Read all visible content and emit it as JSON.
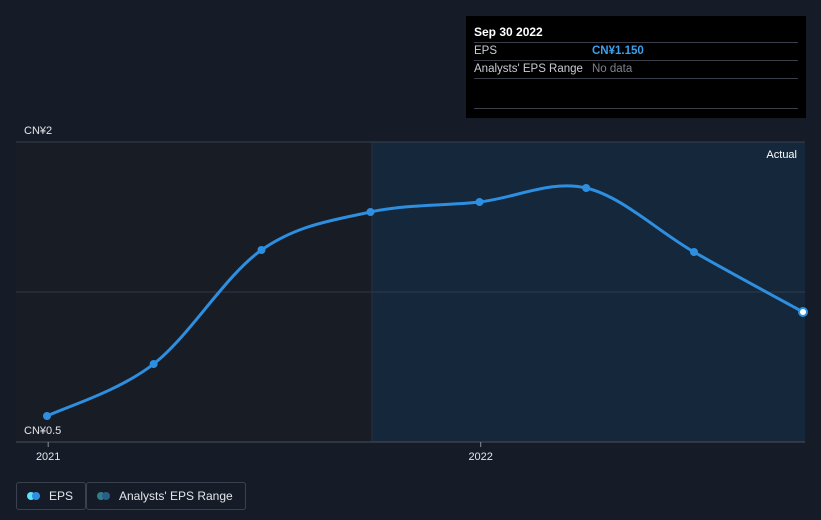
{
  "chart_data": {
    "type": "line",
    "series": [
      {
        "name": "EPS",
        "color": "#2e8fe0",
        "points": [
          {
            "x": "2020-12-31",
            "y": 0.63
          },
          {
            "x": "2021-03-31",
            "y": 0.89
          },
          {
            "x": "2021-06-30",
            "y": 1.46
          },
          {
            "x": "2021-09-30",
            "y": 1.65
          },
          {
            "x": "2021-12-31",
            "y": 1.7
          },
          {
            "x": "2022-03-31",
            "y": 1.77
          },
          {
            "x": "2022-06-30",
            "y": 1.45
          },
          {
            "x": "2022-09-30",
            "y": 1.15
          }
        ]
      }
    ],
    "y_tick_labels": {
      "top": "CN¥2",
      "bottom": "CN¥0.5"
    },
    "x_tick_labels": [
      "2021",
      "2022"
    ],
    "ylim": [
      0.5,
      2
    ],
    "actual_label": "Actual",
    "grid": true,
    "legend_placement": "bottom-left"
  },
  "tooltip": {
    "date": "Sep 30 2022",
    "rows": [
      {
        "label": "EPS",
        "value": "CN¥1.150"
      },
      {
        "label": "Analysts' EPS Range",
        "value": "No data"
      }
    ]
  },
  "legend": {
    "items": [
      {
        "label": "EPS",
        "color_a": "#5ee0f5",
        "color_b": "#2e8fe0"
      },
      {
        "label": "Analysts' EPS Range",
        "color_a": "#2d7f8a",
        "color_b": "#2b5e86"
      }
    ]
  },
  "colors": {
    "background": "#161c27",
    "past_region": "#171c25",
    "future_region": "#14273b",
    "gridline": "#3a404b",
    "line": "#2e8fe0"
  }
}
